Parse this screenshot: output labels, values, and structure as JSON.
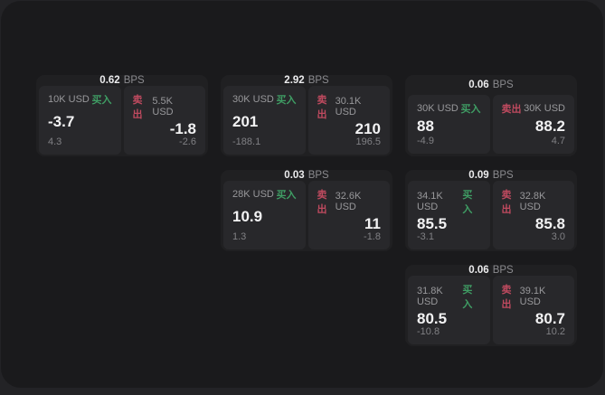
{
  "labels": {
    "buy": "买入",
    "sell": "卖出",
    "bps_unit": "BPS"
  },
  "colors": {
    "buy_green": "#3f9d64",
    "sell_red": "#bf4a5f",
    "window_bg": "#1a1a1c",
    "backdrop_bg": "#232326",
    "card_bg": "#202022",
    "panel_bg": "#28282b"
  },
  "cards": [
    {
      "col": 1,
      "row": 1,
      "bps": "0.62",
      "buy": {
        "size": "10K USD",
        "price": "-3.7",
        "delta": "4.3"
      },
      "sell": {
        "size": "5.5K USD",
        "price": "-1.8",
        "delta": "-2.6"
      }
    },
    {
      "col": 2,
      "row": 1,
      "bps": "2.92",
      "buy": {
        "size": "30K USD",
        "price": "201",
        "delta": "-188.1"
      },
      "sell": {
        "size": "30.1K USD",
        "price": "210",
        "delta": "196.5"
      }
    },
    {
      "col": 3,
      "row": 1,
      "bps": "0.06",
      "buy": {
        "size": "30K USD",
        "price": "88",
        "delta": "-4.9"
      },
      "sell": {
        "size": "30K USD",
        "price": "88.2",
        "delta": "4.7"
      }
    },
    {
      "col": 2,
      "row": 2,
      "bps": "0.03",
      "buy": {
        "size": "28K USD",
        "price": "10.9",
        "delta": "1.3"
      },
      "sell": {
        "size": "32.6K USD",
        "price": "11",
        "delta": "-1.8"
      }
    },
    {
      "col": 3,
      "row": 2,
      "bps": "0.09",
      "buy": {
        "size": "34.1K USD",
        "price": "85.5",
        "delta": "-3.1"
      },
      "sell": {
        "size": "32.8K USD",
        "price": "85.8",
        "delta": "3.0"
      }
    },
    {
      "col": 3,
      "row": 3,
      "bps": "0.06",
      "buy": {
        "size": "31.8K USD",
        "price": "80.5",
        "delta": "-10.8"
      },
      "sell": {
        "size": "39.1K USD",
        "price": "80.7",
        "delta": "10.2"
      }
    }
  ]
}
